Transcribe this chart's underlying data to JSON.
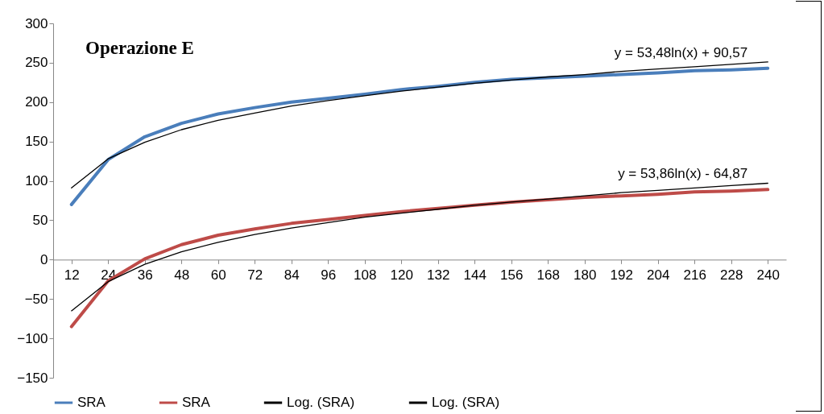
{
  "chart_data": {
    "type": "line",
    "title": "Operazione E",
    "categories": [
      "12",
      "24",
      "36",
      "48",
      "60",
      "72",
      "84",
      "96",
      "108",
      "120",
      "132",
      "144",
      "156",
      "168",
      "180",
      "192",
      "204",
      "216",
      "228",
      "240"
    ],
    "series": [
      {
        "name": "SRA",
        "color": "#4a7ebb",
        "values": [
          70,
          127,
          156,
          173,
          185,
          193,
          200,
          205,
          210,
          216,
          220,
          225,
          229,
          231,
          233,
          235,
          237,
          240,
          241,
          243
        ]
      },
      {
        "name": "SRA",
        "color": "#be4b48",
        "values": [
          -85,
          -27,
          1,
          19,
          31,
          39,
          46,
          51,
          56,
          61,
          65,
          69,
          73,
          76,
          79,
          81,
          83,
          86,
          87,
          89
        ]
      },
      {
        "name": "Log. (SRA)",
        "type": "line",
        "color": "#000000",
        "values": [
          91,
          128,
          149,
          165,
          177,
          186,
          195,
          202,
          208,
          214,
          219,
          224,
          228,
          232,
          235,
          239,
          242,
          245,
          248,
          251
        ]
      },
      {
        "name": "Log. (SRA)",
        "type": "line",
        "color": "#000000",
        "values": [
          -65,
          -28,
          -6,
          10,
          22,
          32,
          40,
          47,
          54,
          59,
          64,
          69,
          73,
          77,
          81,
          85,
          88,
          91,
          94,
          97
        ]
      }
    ],
    "ylim": [
      -150,
      300
    ],
    "yticks": [
      -150,
      -100,
      -50,
      0,
      50,
      100,
      150,
      200,
      250,
      300
    ],
    "annotations": [
      "y = 53,48ln(x) + 90,57",
      "y = 53,86ln(x) - 64,87"
    ],
    "legend": "bottom",
    "grid": false,
    "marker": "none",
    "line_style": "solid"
  }
}
